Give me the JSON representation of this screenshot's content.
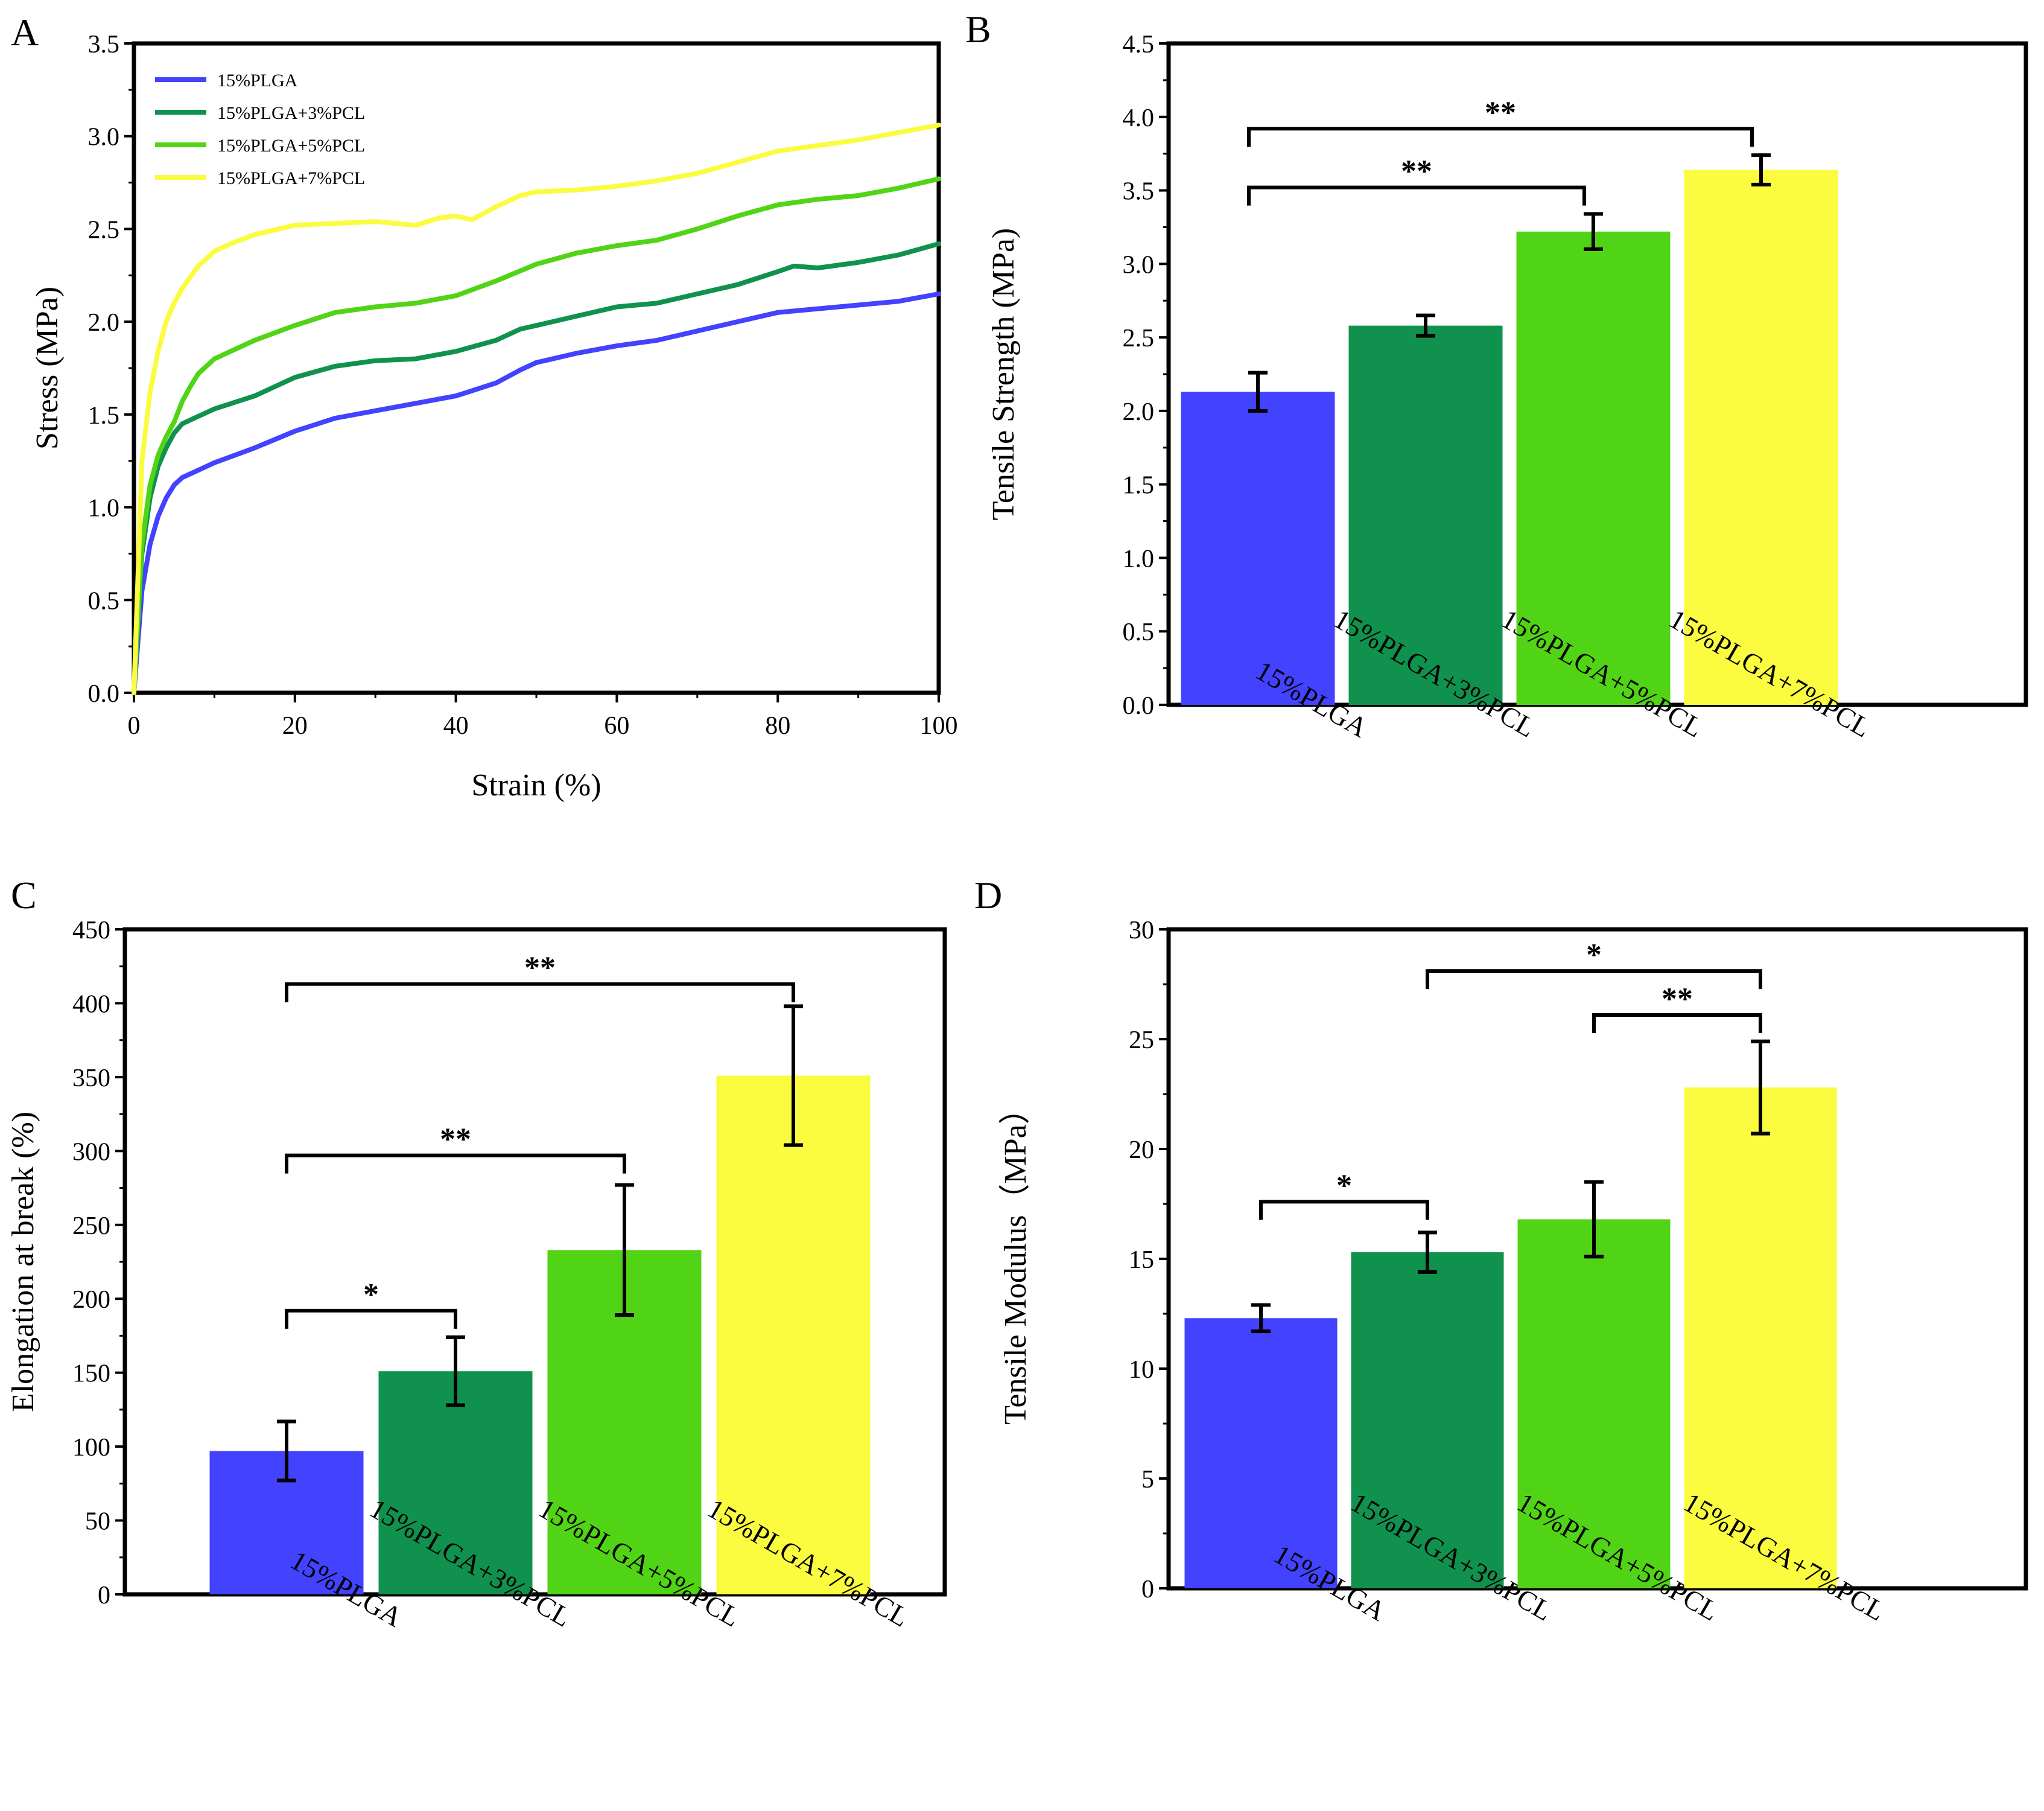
{
  "colors": {
    "plga": "#4242ff",
    "pcl3": "#10924e",
    "pcl5": "#52d416",
    "pcl7": "#fbfb40"
  },
  "chart_data": [
    {
      "panel": "A",
      "type": "line",
      "title": "",
      "xlabel": "Strain (%)",
      "ylabel": "Stress  (MPa)",
      "xlim": [
        0,
        100
      ],
      "ylim": [
        0,
        3.5
      ],
      "xticks": [
        0,
        20,
        40,
        60,
        80,
        100
      ],
      "yticks": [
        "0.0",
        "0.5",
        "1.0",
        "1.5",
        "2.0",
        "2.5",
        "3.0",
        "3.5"
      ],
      "legend_position": "top-left",
      "series": [
        {
          "name": "15%PLGA",
          "color": "#4242ff",
          "x": [
            0,
            1,
            2,
            3,
            4,
            5,
            6,
            8,
            10,
            15,
            20,
            25,
            30,
            35,
            40,
            45,
            48,
            50,
            55,
            60,
            65,
            70,
            75,
            80,
            85,
            90,
            95,
            100
          ],
          "y": [
            0,
            0.55,
            0.8,
            0.95,
            1.05,
            1.12,
            1.16,
            1.2,
            1.24,
            1.32,
            1.41,
            1.48,
            1.52,
            1.56,
            1.6,
            1.67,
            1.74,
            1.78,
            1.83,
            1.87,
            1.9,
            1.95,
            2.0,
            2.05,
            2.07,
            2.09,
            2.11,
            2.15
          ]
        },
        {
          "name": "15%PLGA+3%PCL",
          "color": "#10924e",
          "x": [
            0,
            1,
            2,
            3,
            4,
            5,
            6,
            8,
            10,
            15,
            20,
            25,
            30,
            35,
            40,
            45,
            48,
            50,
            55,
            60,
            65,
            70,
            75,
            80,
            82,
            85,
            90,
            95,
            100
          ],
          "y": [
            0,
            0.75,
            1.05,
            1.22,
            1.32,
            1.4,
            1.45,
            1.49,
            1.53,
            1.6,
            1.7,
            1.76,
            1.79,
            1.8,
            1.84,
            1.9,
            1.96,
            1.98,
            2.03,
            2.08,
            2.1,
            2.15,
            2.2,
            2.27,
            2.3,
            2.29,
            2.32,
            2.36,
            2.42
          ]
        },
        {
          "name": "15%PLGA+5%PCL",
          "color": "#52d416",
          "x": [
            0,
            1,
            2,
            3,
            4,
            5,
            6,
            7,
            8,
            10,
            15,
            20,
            25,
            30,
            35,
            40,
            45,
            50,
            55,
            60,
            65,
            70,
            75,
            80,
            85,
            90,
            95,
            100
          ],
          "y": [
            0,
            0.8,
            1.12,
            1.28,
            1.38,
            1.46,
            1.57,
            1.65,
            1.72,
            1.8,
            1.9,
            1.98,
            2.05,
            2.08,
            2.1,
            2.14,
            2.22,
            2.31,
            2.37,
            2.41,
            2.44,
            2.5,
            2.57,
            2.63,
            2.66,
            2.68,
            2.72,
            2.77
          ]
        },
        {
          "name": "15%PLGA+7%PCL",
          "color": "#fbfb40",
          "x": [
            0,
            1,
            2,
            3,
            4,
            5,
            6,
            8,
            10,
            12,
            15,
            20,
            25,
            30,
            35,
            38,
            40,
            42,
            45,
            48,
            50,
            55,
            60,
            65,
            70,
            75,
            80,
            85,
            90,
            95,
            100
          ],
          "y": [
            0,
            1.25,
            1.62,
            1.84,
            2.0,
            2.1,
            2.18,
            2.3,
            2.38,
            2.42,
            2.47,
            2.52,
            2.53,
            2.54,
            2.52,
            2.56,
            2.57,
            2.55,
            2.62,
            2.68,
            2.7,
            2.71,
            2.73,
            2.76,
            2.8,
            2.86,
            2.92,
            2.95,
            2.98,
            3.02,
            3.06
          ]
        }
      ]
    },
    {
      "panel": "B",
      "type": "bar",
      "title": "",
      "xlabel": "",
      "ylabel": "Tensile Strength (MPa)",
      "ylim": [
        0,
        4.5
      ],
      "yticks": [
        "0.0",
        "0.5",
        "1.0",
        "1.5",
        "2.0",
        "2.5",
        "3.0",
        "3.5",
        "4.0",
        "4.5"
      ],
      "categories": [
        "15%PLGA",
        "15%PLGA+3%PCL",
        "15%PLGA+5%PCL",
        "15%PLGA+7%PCL"
      ],
      "values": [
        2.13,
        2.58,
        3.22,
        3.64
      ],
      "errors": [
        0.13,
        0.07,
        0.12,
        0.1
      ],
      "significance": [
        {
          "from": 0,
          "to": 2,
          "label": "**"
        },
        {
          "from": 0,
          "to": 3,
          "label": "**"
        }
      ]
    },
    {
      "panel": "C",
      "type": "bar",
      "title": "",
      "xlabel": "",
      "ylabel": "Elongation at break (%)",
      "ylim": [
        0,
        450
      ],
      "yticks": [
        "0",
        "50",
        "100",
        "150",
        "200",
        "250",
        "300",
        "350",
        "400",
        "450"
      ],
      "categories": [
        "15%PLGA",
        "15%PLGA+3%PCL",
        "15%PLGA+5%PCL",
        "15%PLGA+7%PCL"
      ],
      "values": [
        97,
        151,
        233,
        351
      ],
      "errors": [
        20,
        23,
        44,
        47
      ],
      "significance": [
        {
          "from": 0,
          "to": 1,
          "label": "*"
        },
        {
          "from": 0,
          "to": 2,
          "label": "**"
        },
        {
          "from": 0,
          "to": 3,
          "label": "**"
        }
      ]
    },
    {
      "panel": "D",
      "type": "bar",
      "title": "",
      "xlabel": "",
      "ylabel": "Tensile Modulus（MPa）",
      "ylim": [
        0,
        30
      ],
      "yticks": [
        "0",
        "5",
        "10",
        "15",
        "20",
        "25",
        "30"
      ],
      "categories": [
        "15%PLGA",
        "15%PLGA+3%PCL",
        "15%PLGA+5%PCL",
        "15%PLGA+7%PCL"
      ],
      "values": [
        12.3,
        15.3,
        16.8,
        22.8
      ],
      "errors": [
        0.6,
        0.9,
        1.7,
        2.1
      ],
      "significance": [
        {
          "from": 0,
          "to": 1,
          "label": "*"
        },
        {
          "from": 2,
          "to": 3,
          "label": "**"
        },
        {
          "from": 1,
          "to": 3,
          "label": "*"
        }
      ]
    }
  ]
}
